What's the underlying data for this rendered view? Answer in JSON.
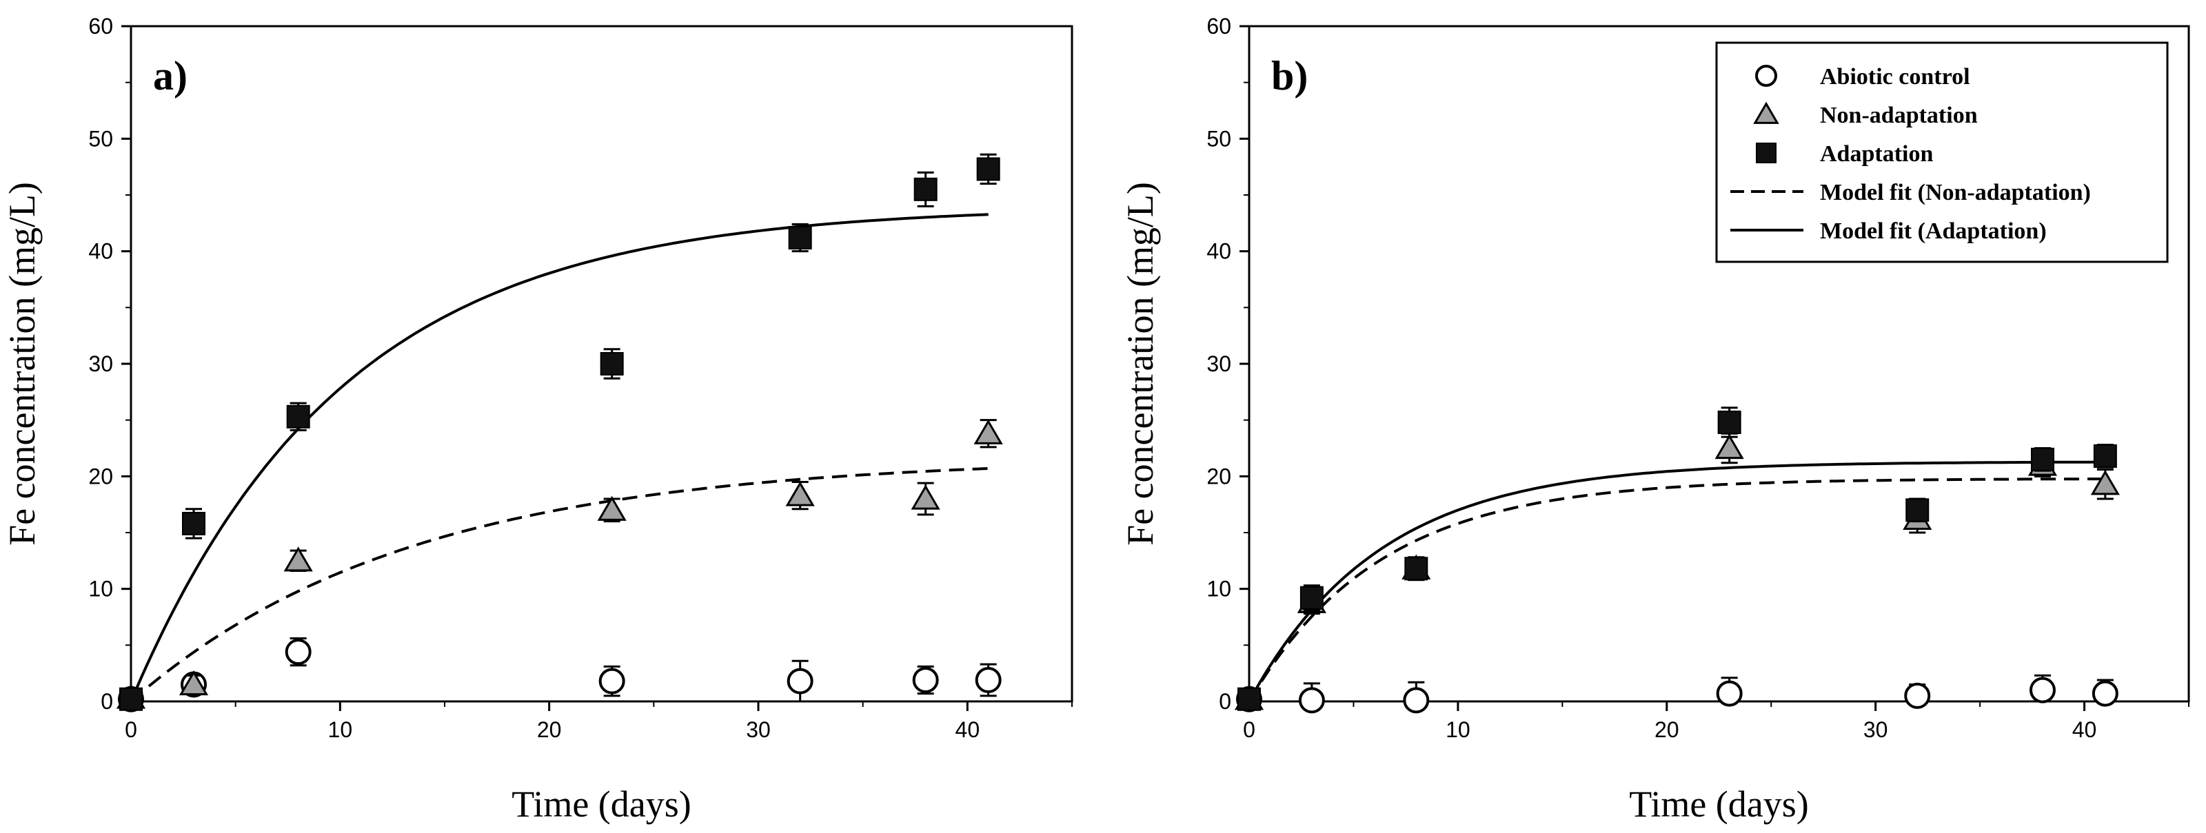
{
  "chart_data": [
    {
      "type": "scatter",
      "panel_label": "a)",
      "xlabel": "Time (days)",
      "ylabel": "Fe concentration (mg/L)",
      "xlim": [
        0,
        45
      ],
      "ylim": [
        0,
        60
      ],
      "xticks": [
        0,
        10,
        20,
        30,
        40
      ],
      "yticks": [
        0,
        10,
        20,
        30,
        40,
        50,
        60
      ],
      "series": [
        {
          "name": "Abiotic control",
          "marker": "circle",
          "x": [
            0,
            3,
            8,
            23,
            32,
            38,
            41
          ],
          "y": [
            0.2,
            1.5,
            4.4,
            1.8,
            1.8,
            1.9,
            1.9
          ],
          "err": [
            0.6,
            0.8,
            1.2,
            1.3,
            1.8,
            1.2,
            1.4
          ]
        },
        {
          "name": "Non-adaptation",
          "marker": "triangle",
          "x": [
            0,
            3,
            8,
            23,
            32,
            38,
            41
          ],
          "y": [
            0.3,
            1.5,
            12.5,
            17.0,
            18.3,
            18.0,
            23.8
          ],
          "err": [
            0.5,
            0.8,
            0.9,
            1.0,
            1.2,
            1.4,
            1.2
          ]
        },
        {
          "name": "Adaptation",
          "marker": "square",
          "x": [
            0,
            3,
            8,
            23,
            32,
            38,
            41
          ],
          "y": [
            0.2,
            15.8,
            25.3,
            30.0,
            41.2,
            45.5,
            47.3
          ],
          "err": [
            0.5,
            1.3,
            1.2,
            1.3,
            1.2,
            1.5,
            1.3
          ]
        }
      ],
      "fits": [
        {
          "name": "Model fit (Non-adaptation)",
          "style": "dashed",
          "a": 21.7,
          "k": 0.075,
          "xmax": 41
        },
        {
          "name": "Model fit (Adaptation)",
          "style": "solid",
          "a": 44.0,
          "k": 0.1,
          "xmax": 41
        }
      ],
      "legend": false
    },
    {
      "type": "scatter",
      "panel_label": "b)",
      "xlabel": "Time (days)",
      "ylabel": "Fe concentration (mg/L)",
      "xlim": [
        0,
        45
      ],
      "ylim": [
        0,
        60
      ],
      "xticks": [
        0,
        10,
        20,
        30,
        40
      ],
      "yticks": [
        0,
        10,
        20,
        30,
        40,
        50,
        60
      ],
      "series": [
        {
          "name": "Abiotic control",
          "marker": "circle",
          "x": [
            0,
            3,
            8,
            23,
            32,
            38,
            41
          ],
          "y": [
            0.2,
            0.1,
            0.1,
            0.7,
            0.5,
            1.0,
            0.7
          ],
          "err": [
            0.5,
            1.5,
            1.6,
            1.4,
            1.0,
            1.3,
            1.2
          ]
        },
        {
          "name": "Non-adaptation",
          "marker": "triangle",
          "x": [
            0,
            3,
            8,
            23,
            32,
            38,
            41
          ],
          "y": [
            0.2,
            8.8,
            11.8,
            22.5,
            16.2,
            21.0,
            19.3
          ],
          "err": [
            0.5,
            1.0,
            1.0,
            1.3,
            1.2,
            1.0,
            1.3
          ]
        },
        {
          "name": "Adaptation",
          "marker": "square",
          "x": [
            0,
            3,
            8,
            23,
            32,
            38,
            41
          ],
          "y": [
            0.2,
            9.2,
            11.8,
            24.8,
            17.0,
            21.5,
            21.8
          ],
          "err": [
            0.5,
            1.1,
            1.0,
            1.3,
            1.0,
            1.0,
            1.0
          ]
        }
      ],
      "fits": [
        {
          "name": "Model fit (Non-adaptation)",
          "style": "dashed",
          "a": 19.8,
          "k": 0.16,
          "xmax": 41
        },
        {
          "name": "Model fit (Adaptation)",
          "style": "solid",
          "a": 21.3,
          "k": 0.16,
          "xmax": 41
        }
      ],
      "legend": true,
      "legend_position": "top-right",
      "legend_entries": [
        {
          "label": "Abiotic control",
          "kind": "circle"
        },
        {
          "label": "Non-adaptation",
          "kind": "triangle"
        },
        {
          "label": "Adaptation",
          "kind": "square"
        },
        {
          "label": "Model fit (Non-adaptation)",
          "kind": "dashed"
        },
        {
          "label": "Model fit (Adaptation)",
          "kind": "solid"
        }
      ]
    }
  ],
  "colors": {
    "axis": "#000000",
    "square_fill": "#111111",
    "triangle_fill": "#a0a0a0",
    "circle_fill": "#ffffff",
    "line": "#000000"
  }
}
